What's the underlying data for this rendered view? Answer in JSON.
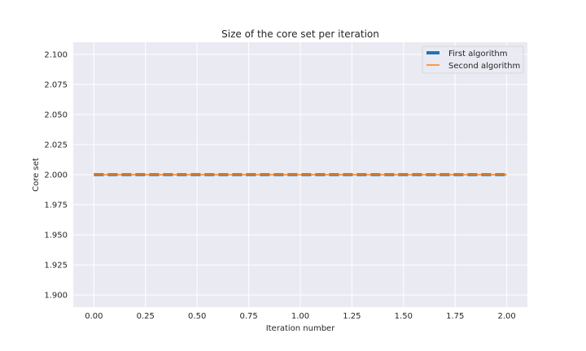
{
  "chart_data": {
    "type": "line",
    "title": "Size of the core set per iteration",
    "xlabel": "Iteration number",
    "ylabel": "Core set",
    "xlim": [
      -0.1,
      2.1
    ],
    "ylim": [
      1.89,
      2.11
    ],
    "xticks": [
      0.0,
      0.25,
      0.5,
      0.75,
      1.0,
      1.25,
      1.5,
      1.75,
      2.0
    ],
    "xtick_labels": [
      "0.00",
      "0.25",
      "0.50",
      "0.75",
      "1.00",
      "1.25",
      "1.50",
      "1.75",
      "2.00"
    ],
    "yticks": [
      1.9,
      1.925,
      1.95,
      1.975,
      2.0,
      2.025,
      2.05,
      2.075,
      2.1
    ],
    "ytick_labels": [
      "1.900",
      "1.925",
      "1.950",
      "1.975",
      "2.000",
      "2.025",
      "2.050",
      "2.075",
      "2.100"
    ],
    "grid": true,
    "legend_position": "top-right",
    "series": [
      {
        "name": "First algorithm",
        "x": [
          0,
          1,
          2
        ],
        "y": [
          2,
          2,
          2
        ],
        "color": "#1f77b4",
        "style": "dashed"
      },
      {
        "name": "Second algorithm",
        "x": [
          0,
          1,
          2
        ],
        "y": [
          2,
          2,
          2
        ],
        "color": "#ff7f0e",
        "style": "solid"
      }
    ]
  },
  "colors": {
    "plot_background": "#eaeaf2",
    "grid": "#ffffff",
    "text": "#262626"
  }
}
